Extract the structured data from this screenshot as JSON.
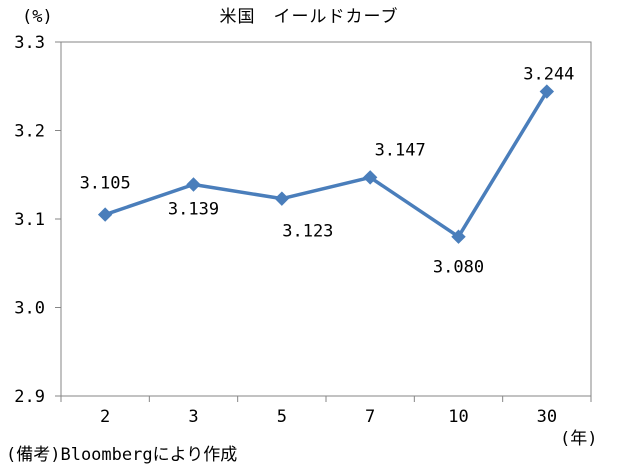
{
  "chart_data": {
    "type": "line",
    "title": "米国　イールドカーブ",
    "y_unit": "(%)",
    "x_unit": "(年)",
    "source_note": "(備考)Bloombergにより作成",
    "categories": [
      "2",
      "3",
      "5",
      "7",
      "10",
      "30"
    ],
    "series": [
      {
        "values": [
          3.105,
          3.139,
          3.123,
          3.147,
          3.08,
          3.244
        ]
      }
    ],
    "data_labels": [
      "3.105",
      "3.139",
      "3.123",
      "3.147",
      "3.080",
      "3.244"
    ],
    "ylim": [
      2.9,
      3.3
    ],
    "y_ticks": [
      2.9,
      3.0,
      3.1,
      3.2,
      3.3
    ],
    "y_tick_labels": [
      "2.9",
      "3.0",
      "3.1",
      "3.2",
      "3.3"
    ],
    "grid": false,
    "legend": "none",
    "line_color": "#4a7ebb",
    "marker": "diamond"
  }
}
